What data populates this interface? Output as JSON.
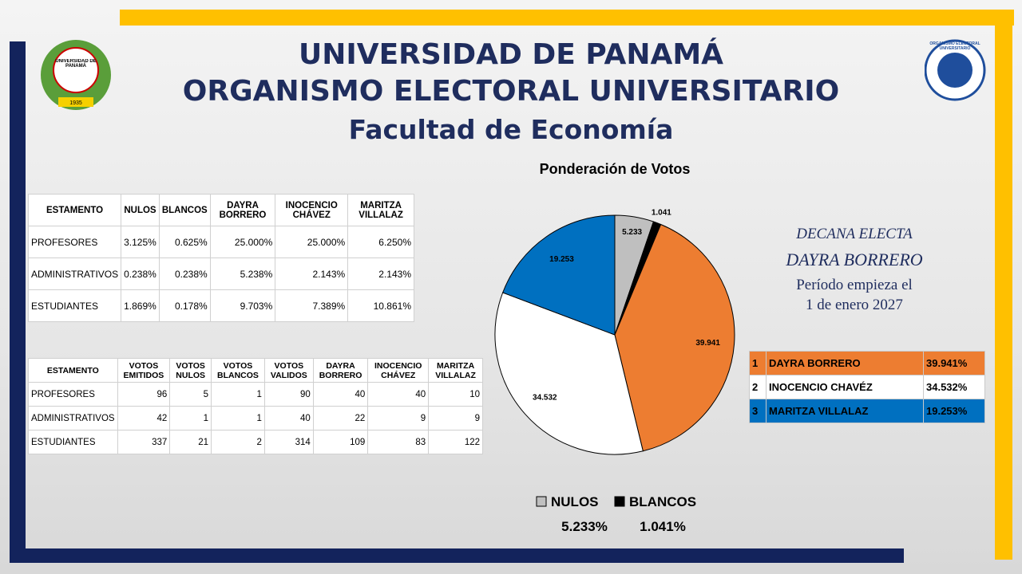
{
  "header": {
    "line1": "UNIVERSIDAD DE PANAMÁ",
    "line2": "ORGANISMO ELECTORAL UNIVERSITARIO",
    "line3": "Facultad de Economía"
  },
  "logos": {
    "left_text": "UNIVERSIDAD DE PANAMÁ",
    "left_year": "1935",
    "right_text": "ORGANISMO ELECTORAL UNIVERSITARIO"
  },
  "table1": {
    "header": [
      "ESTAMENTO",
      "NULOS",
      "BLANCOS",
      "DAYRA BORRERO",
      "INOCENCIO CHÁVEZ",
      "MARITZA VILLALAZ"
    ],
    "rows": [
      [
        "PROFESORES",
        "3.125%",
        "0.625%",
        "25.000%",
        "25.000%",
        "6.250%"
      ],
      [
        "ADMINISTRATIVOS",
        "0.238%",
        "0.238%",
        "5.238%",
        "2.143%",
        "2.143%"
      ],
      [
        "ESTUDIANTES",
        "1.869%",
        "0.178%",
        "9.703%",
        "7.389%",
        "10.861%"
      ]
    ]
  },
  "table2": {
    "header": [
      "ESTAMENTO",
      "VOTOS EMITIDOS",
      "VOTOS NULOS",
      "VOTOS BLANCOS",
      "VOTOS VALIDOS",
      "DAYRA BORRERO",
      "INOCENCIO CHÁVEZ",
      "MARITZA VILLALAZ"
    ],
    "rows": [
      [
        "PROFESORES",
        96,
        5,
        1,
        90,
        40,
        40,
        10
      ],
      [
        "ADMINISTRATIVOS",
        42,
        1,
        1,
        40,
        22,
        9,
        9
      ],
      [
        "ESTUDIANTES",
        337,
        21,
        2,
        314,
        109,
        83,
        122
      ]
    ]
  },
  "chart_data": {
    "type": "pie",
    "title": "Ponderación de Votos",
    "categories": [
      "NULOS",
      "BLANCOS",
      null,
      null,
      null
    ],
    "values": [
      5.233,
      1.041,
      39.941,
      34.532,
      19.253
    ],
    "colors": [
      "#bfbfbf",
      "#000000",
      "#ed7d31",
      "#ffffff",
      "#0070c0"
    ],
    "legend_values": [
      "5.233%",
      "1.041%"
    ]
  },
  "result": {
    "title1": "DECANA ELECTA",
    "title2": "DAYRA BORRERO",
    "period1": "Período empieza el",
    "period2": "1 de enero 2027"
  },
  "ranking": {
    "rows": [
      [
        "1",
        "DAYRA BORRERO",
        "39.941%"
      ],
      [
        "2",
        "INOCENCIO CHAVÉZ",
        "34.532%"
      ],
      [
        "3",
        "MARITZA VILLALAZ",
        "19.253%"
      ]
    ],
    "colors": [
      "#ed7d31",
      "#ffffff",
      "#0070c0"
    ]
  }
}
